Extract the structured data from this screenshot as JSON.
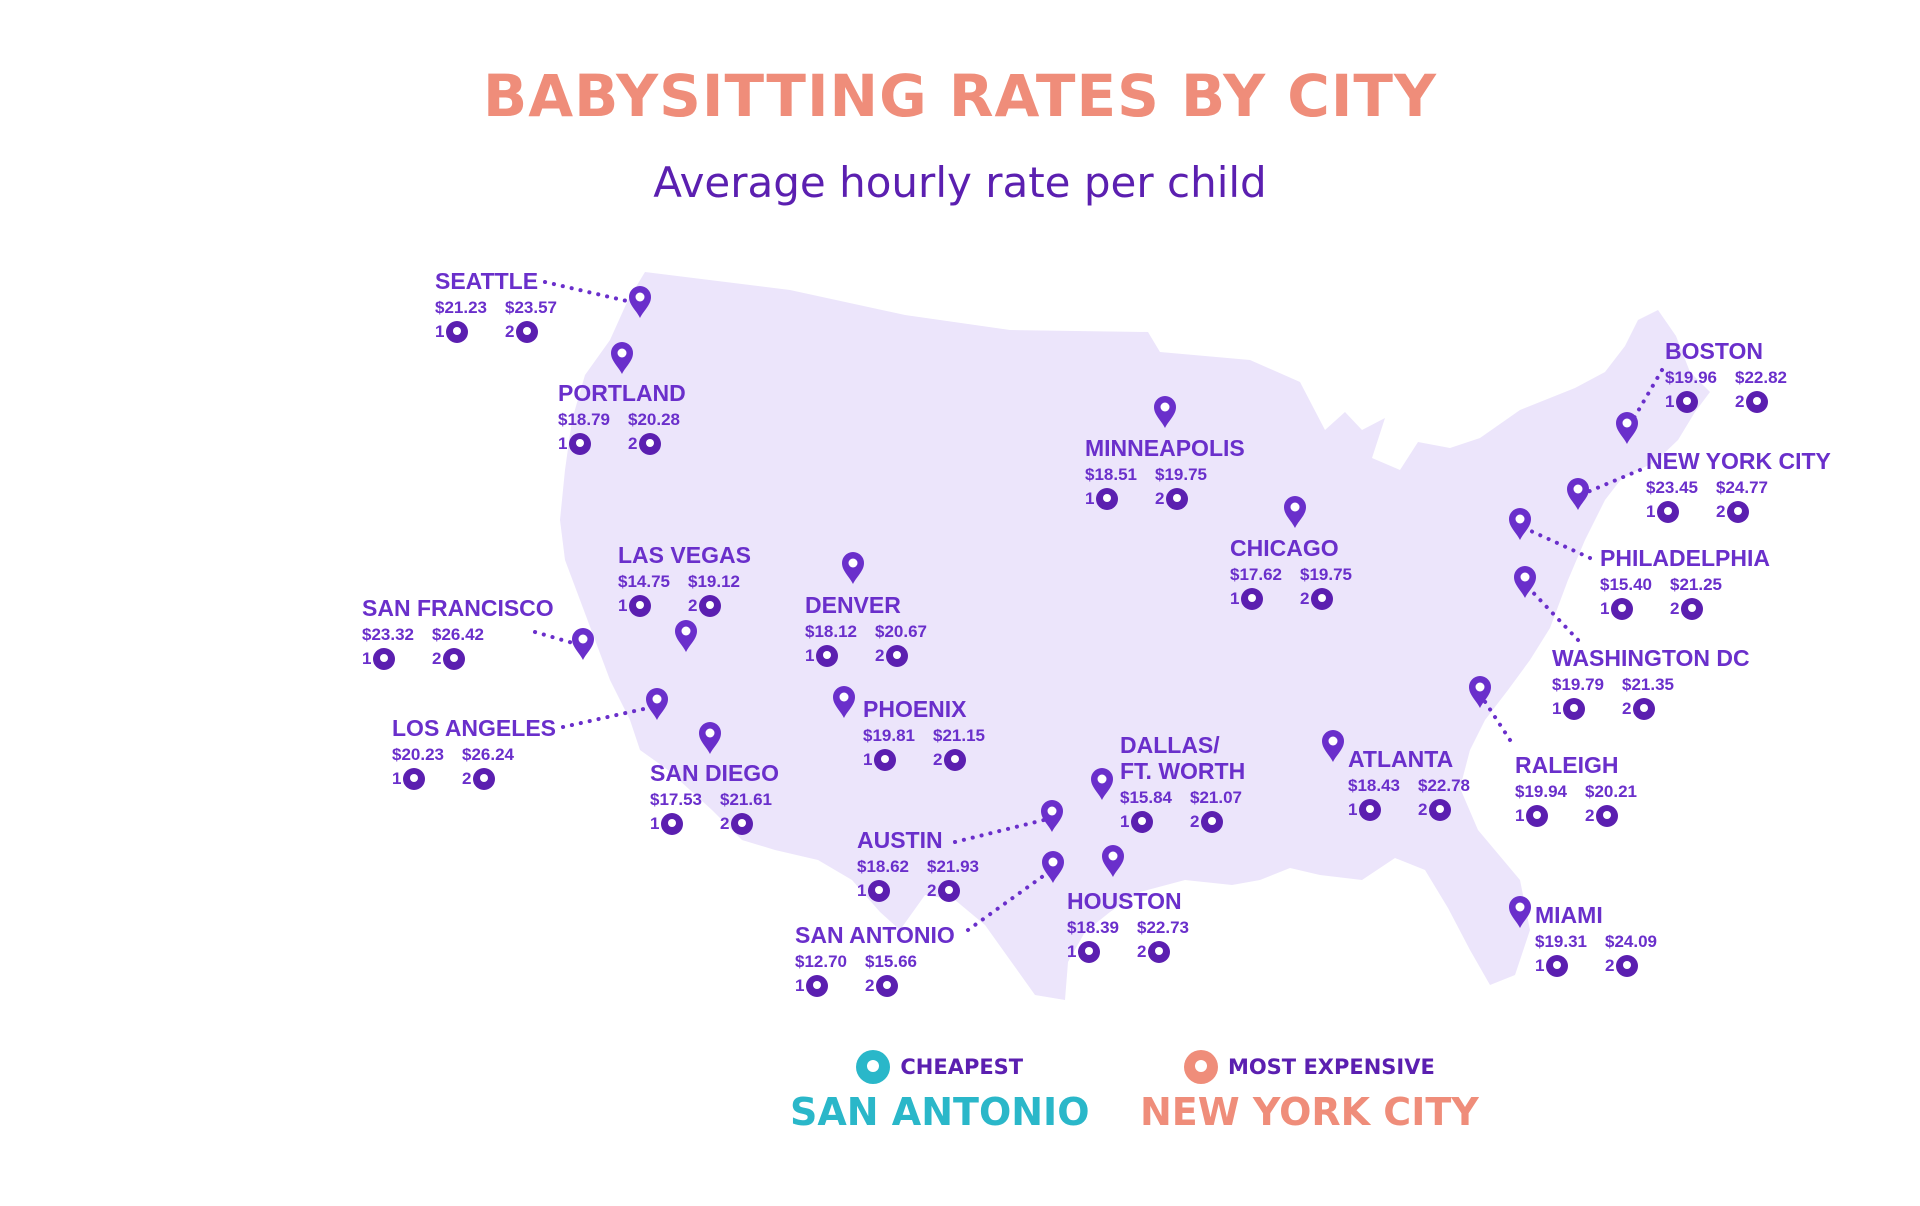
{
  "title": "BABYSITTING RATES BY CITY",
  "subtitle": "Average hourly rate per child",
  "colors": {
    "title": "#ef8d7a",
    "subtitle": "#5b1fb0",
    "text": "#6a2fcb",
    "map_fill": "#ece5fb",
    "pin": "#6a2fcb",
    "cheapest": "#2ab7c9",
    "expensive": "#ef8d7a"
  },
  "cities": [
    {
      "name": "SEATTLE",
      "one_child": "$21.23",
      "two_children": "$23.57"
    },
    {
      "name": "PORTLAND",
      "one_child": "$18.79",
      "two_children": "$20.28"
    },
    {
      "name": "SAN FRANCISCO",
      "one_child": "$23.32",
      "two_children": "$26.42"
    },
    {
      "name": "LAS VEGAS",
      "one_child": "$14.75",
      "two_children": "$19.12"
    },
    {
      "name": "LOS ANGELES",
      "one_child": "$20.23",
      "two_children": "$26.24"
    },
    {
      "name": "SAN DIEGO",
      "one_child": "$17.53",
      "two_children": "$21.61"
    },
    {
      "name": "DENVER",
      "one_child": "$18.12",
      "two_children": "$20.67"
    },
    {
      "name": "PHOENIX",
      "one_child": "$19.81",
      "two_children": "$21.15"
    },
    {
      "name": "MINNEAPOLIS",
      "one_child": "$18.51",
      "two_children": "$19.75"
    },
    {
      "name": "CHICAGO",
      "one_child": "$17.62",
      "two_children": "$19.75"
    },
    {
      "name": "DALLAS/\nFT. WORTH",
      "one_child": "$15.84",
      "two_children": "$21.07"
    },
    {
      "name": "AUSTIN",
      "one_child": "$18.62",
      "two_children": "$21.93"
    },
    {
      "name": "SAN ANTONIO",
      "one_child": "$12.70",
      "two_children": "$15.66"
    },
    {
      "name": "HOUSTON",
      "one_child": "$18.39",
      "two_children": "$22.73"
    },
    {
      "name": "ATLANTA",
      "one_child": "$18.43",
      "two_children": "$22.78"
    },
    {
      "name": "RALEIGH",
      "one_child": "$19.94",
      "two_children": "$20.21"
    },
    {
      "name": "MIAMI",
      "one_child": "$19.31",
      "two_children": "$24.09"
    },
    {
      "name": "WASHINGTON DC",
      "one_child": "$19.79",
      "two_children": "$21.35"
    },
    {
      "name": "PHILADELPHIA",
      "one_child": "$15.40",
      "two_children": "$21.25"
    },
    {
      "name": "NEW YORK CITY",
      "one_child": "$23.45",
      "two_children": "$24.77"
    },
    {
      "name": "BOSTON",
      "one_child": "$19.96",
      "two_children": "$22.82"
    }
  ],
  "child_count_labels": {
    "one": "1",
    "two": "2"
  },
  "legend": {
    "cheapest": {
      "tag": "CHEAPEST",
      "city": "SAN ANTONIO"
    },
    "most_expensive": {
      "tag": "MOST EXPENSIVE",
      "city": "NEW YORK CITY"
    }
  }
}
